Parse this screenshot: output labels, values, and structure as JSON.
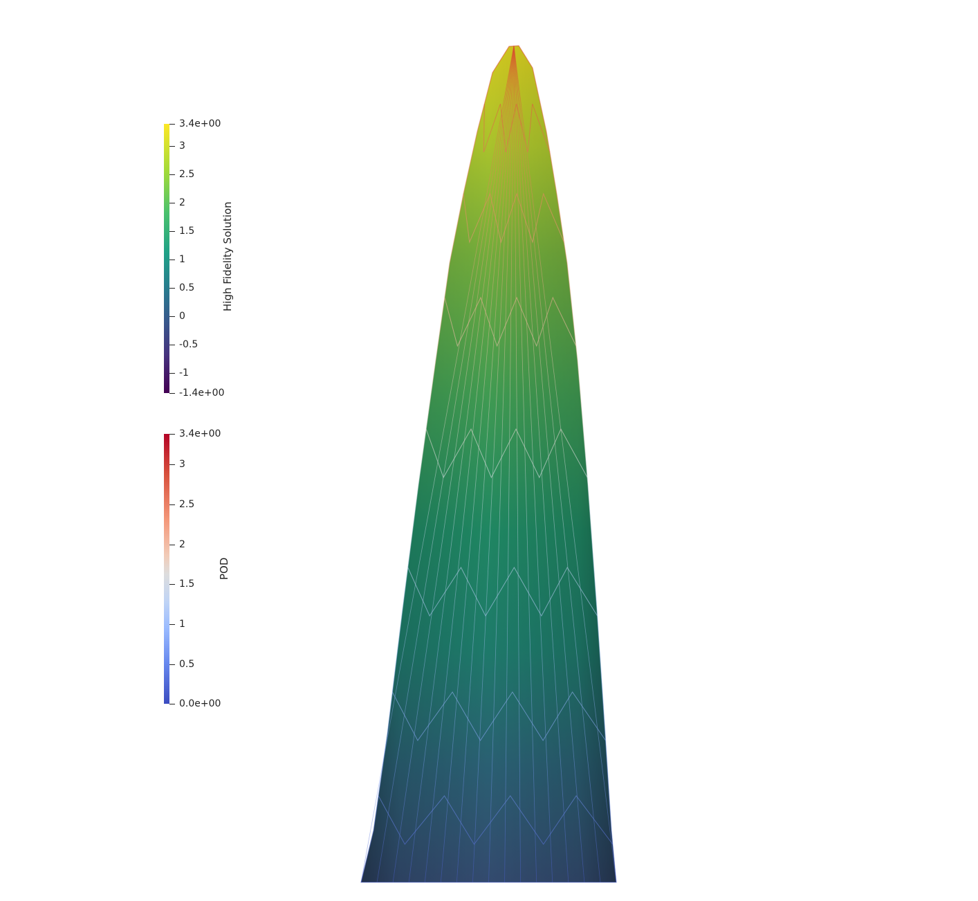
{
  "colorbars": {
    "high_fidelity": {
      "title": "High Fidelity Solution",
      "colormap": "viridis",
      "range": [
        -1.4,
        3.4
      ],
      "tick_labels": [
        "3.4e+00",
        "3",
        "2.5",
        "2",
        "1.5",
        "1",
        "0.5",
        "0",
        "-0.5",
        "-1",
        "-1.4e+00"
      ]
    },
    "pod": {
      "title": "POD",
      "colormap": "coolwarm",
      "range": [
        0.0,
        3.4
      ],
      "tick_labels": [
        "3.4e+00",
        "3",
        "2.5",
        "2",
        "1.5",
        "1",
        "0.5",
        "0.0e+00"
      ]
    }
  },
  "scene": {
    "object": "tapered-mesh-surface",
    "surface_colormap": "viridis",
    "wireframe_colormap": "coolwarm",
    "background": "#ffffff"
  }
}
